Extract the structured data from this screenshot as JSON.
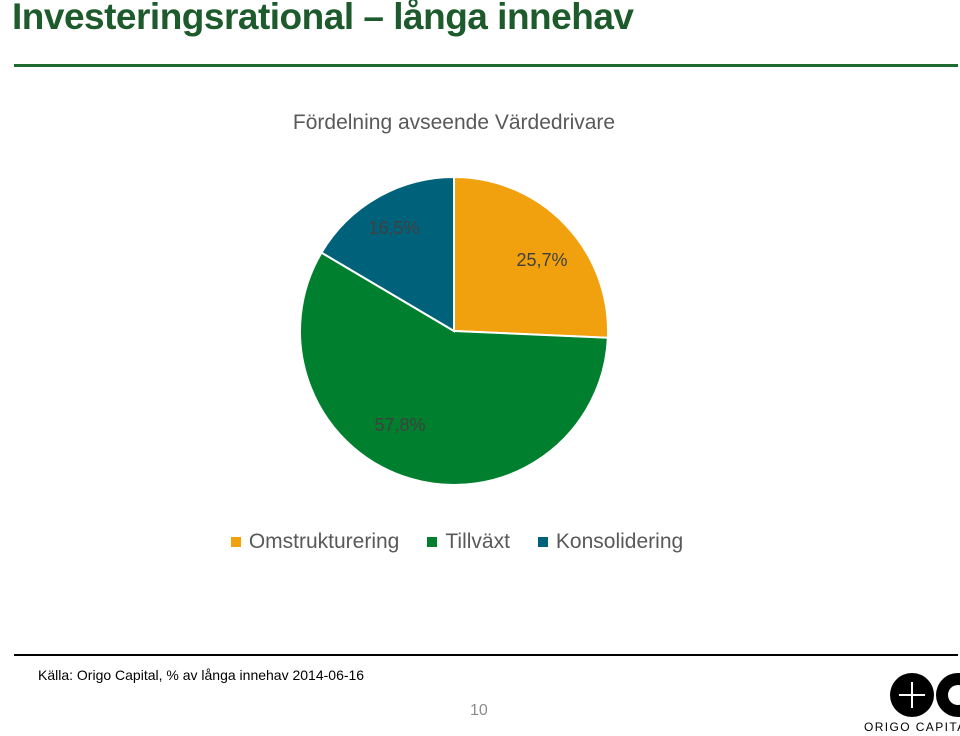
{
  "slide": {
    "title": "Investeringsrational – långa innehav",
    "source": "Källa: Origo Capital, % av långa innehav 2014-06-16",
    "page_number": "10",
    "logo_text": "ORIGO CAPITAL"
  },
  "chart_data": {
    "type": "pie",
    "title": "Fördelning avseende Värdedrivare",
    "slices": [
      {
        "name": "Omstrukturering",
        "value": 25.7,
        "label": "25,7%",
        "color": "#f2a10e"
      },
      {
        "name": "Tillväxt",
        "value": 57.8,
        "label": "57,8%",
        "color": "#007f2e"
      },
      {
        "name": "Konsolidering",
        "value": 16.5,
        "label": "16,5%",
        "color": "#00627a"
      }
    ],
    "start_angle_deg": 0,
    "direction": "clockwise",
    "legend_position": "bottom"
  }
}
